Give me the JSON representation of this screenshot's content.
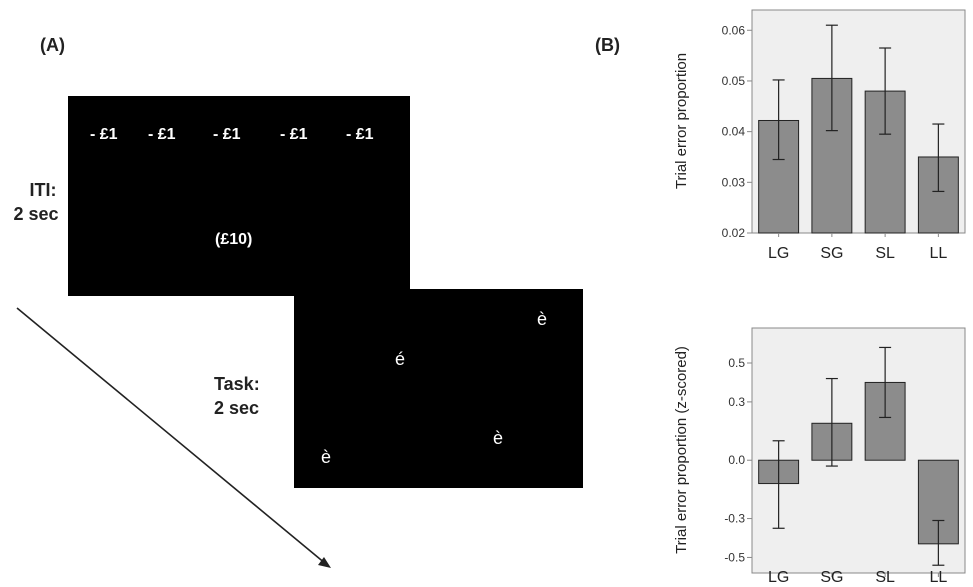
{
  "panel_a": {
    "label": "(A)",
    "iti": {
      "line1": "ITI:",
      "line2": "2 sec",
      "cues": [
        "- £1",
        "- £1",
        "- £1",
        "- £1",
        "- £1"
      ],
      "total": "(£10)"
    },
    "task": {
      "line1": "Task:",
      "line2": "2 sec",
      "letters": [
        "è",
        "é",
        "è",
        "è"
      ]
    }
  },
  "panel_b": {
    "label": "(B)"
  },
  "colors": {
    "bar_fill": "#8c8c8c",
    "plot_bg": "#efefef",
    "axis": "#888888"
  },
  "chart_data": [
    {
      "type": "bar",
      "ylabel": "Trial error proportion",
      "categories": [
        "LG",
        "SG",
        "SL",
        "LL"
      ],
      "values": [
        0.0422,
        0.0505,
        0.048,
        0.035
      ],
      "error_low": [
        0.0345,
        0.0402,
        0.0395,
        0.0282
      ],
      "error_high": [
        0.0502,
        0.061,
        0.0565,
        0.0415
      ],
      "ylim": [
        0.02,
        0.064
      ],
      "yticks": [
        0.02,
        0.03,
        0.04,
        0.05,
        0.06
      ],
      "ytick_labels": [
        "0.02",
        "0.03",
        "0.04",
        "0.05",
        "0.06"
      ],
      "grid": false
    },
    {
      "type": "bar",
      "ylabel": "Trial error proportion (z-scored)",
      "categories": [
        "LG",
        "SG",
        "SL",
        "LL"
      ],
      "values": [
        -0.12,
        0.19,
        0.4,
        -0.43
      ],
      "error_low": [
        -0.35,
        -0.03,
        0.22,
        -0.54
      ],
      "error_high": [
        0.1,
        0.42,
        0.58,
        -0.31
      ],
      "ylim": [
        -0.58,
        0.68
      ],
      "yticks": [
        -0.5,
        -0.3,
        0.0,
        0.3,
        0.5
      ],
      "ytick_labels": [
        "-0.5",
        "-0.3",
        "0.0",
        "0.3",
        "0.5"
      ],
      "grid": false
    }
  ]
}
